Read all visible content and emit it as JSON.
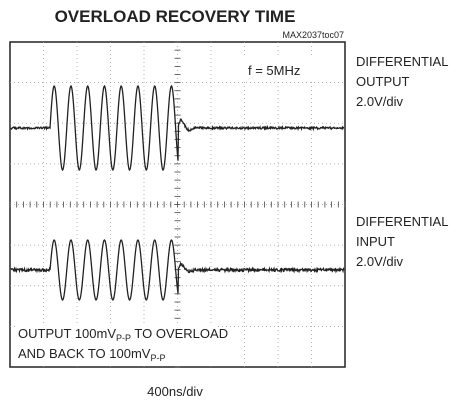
{
  "title": "OVERLOAD RECOVERY TIME",
  "figure_id": "MAX2037toc07",
  "frequency_label": "f = 5MHz",
  "channels": [
    {
      "lines": [
        "DIFFERENTIAL",
        "OUTPUT",
        "2.0V/div"
      ]
    },
    {
      "lines": [
        "DIFFERENTIAL",
        "INPUT",
        "2.0V/div"
      ]
    }
  ],
  "annotation": [
    [
      "OUTPUT 100mV",
      "P-P",
      " TO OVERLOAD"
    ],
    [
      "AND BACK TO 100mV",
      "P-P"
    ]
  ],
  "time_scale": "400ns/div"
}
